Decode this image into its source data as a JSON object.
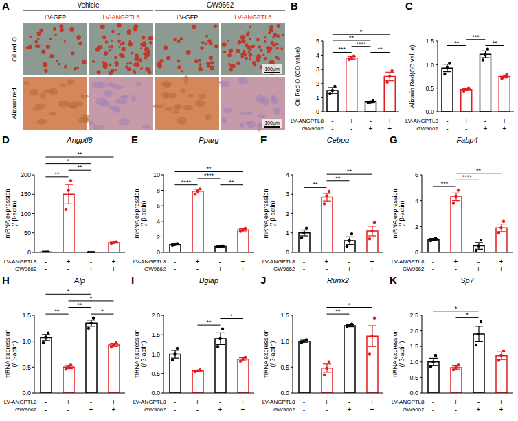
{
  "image_panel": {
    "panel": "A",
    "groups": [
      "Vehicle",
      "GW9662"
    ],
    "columns": [
      "LV-GFP",
      "LV-ANGPTL8",
      "LV-GFP",
      "LV-ANGPTL8"
    ],
    "rows": [
      "Oil red O",
      "Alizarin red"
    ],
    "scale_bar": "100μm"
  },
  "conditions": [
    {
      "label": "LV-ANGPTL8",
      "marks": [
        "-",
        "+",
        "-",
        "+"
      ]
    },
    {
      "label": "GW9662",
      "marks": [
        "-",
        "-",
        "+",
        "+"
      ]
    }
  ],
  "chart_data": [
    {
      "type": "bar",
      "panel": "B",
      "ylabel": [
        "Oil Red O (OD value)"
      ],
      "categories": [
        null,
        null,
        null,
        null
      ],
      "values": [
        1.5,
        3.8,
        0.7,
        2.5
      ],
      "errors": [
        0.2,
        0.1,
        0.05,
        0.3
      ],
      "points": [
        [
          1.3,
          1.5,
          1.8
        ],
        [
          3.7,
          3.8,
          3.95
        ],
        [
          0.65,
          0.7,
          0.78
        ],
        [
          2.1,
          2.5,
          2.9
        ]
      ],
      "colors": [
        "#000000",
        "#e41a1c",
        "#000000",
        "#e41a1c"
      ],
      "ylim": [
        0,
        5
      ],
      "yticks": [
        0,
        1,
        2,
        3,
        4,
        5
      ],
      "significance": [
        {
          "from": 0,
          "to": 1,
          "label": "***"
        },
        {
          "from": 2,
          "to": 3,
          "label": "**"
        },
        {
          "from": 1,
          "to": 2,
          "label": "****"
        },
        {
          "from": 0,
          "to": 2,
          "label": "**"
        },
        {
          "from": 0,
          "to": 3,
          "label": "*"
        }
      ]
    },
    {
      "type": "bar",
      "panel": "C",
      "ylabel": [
        "Alizarin Red(OD value)"
      ],
      "categories": [
        null,
        null,
        null,
        null
      ],
      "values": [
        0.93,
        0.47,
        1.22,
        0.75
      ],
      "errors": [
        0.08,
        0.02,
        0.07,
        0.03
      ],
      "points": [
        [
          0.8,
          0.95,
          1.03
        ],
        [
          0.44,
          0.47,
          0.5
        ],
        [
          1.1,
          1.22,
          1.33
        ],
        [
          0.71,
          0.75,
          0.79
        ]
      ],
      "colors": [
        "#000000",
        "#e41a1c",
        "#000000",
        "#e41a1c"
      ],
      "ylim": [
        0,
        1.5
      ],
      "yticks": [
        {
          "value": 0,
          "label": "0.0"
        },
        0.5,
        {
          "value": 1,
          "label": "1.0"
        },
        1.5
      ],
      "significance": [
        {
          "from": 0,
          "to": 1,
          "label": "**"
        },
        {
          "from": 2,
          "to": 3,
          "label": "**"
        },
        {
          "from": 1,
          "to": 2,
          "label": "***"
        }
      ]
    },
    {
      "type": "bar",
      "panel": "D",
      "title": "Angptl8",
      "ylabel": [
        "mRNA expression",
        "(/ β-actin)"
      ],
      "categories": [
        null,
        null,
        null,
        null
      ],
      "values": [
        1.0,
        150,
        0.15,
        25
      ],
      "errors": [
        0.12,
        25,
        0.03,
        1.5
      ],
      "points": [
        [
          0.85,
          1.0,
          1.15
        ],
        [
          110,
          160,
          185
        ],
        [
          0.1,
          0.15,
          0.2
        ],
        [
          23,
          25,
          27
        ]
      ],
      "colors": [
        "#000000",
        "#e41a1c",
        "#000000",
        "#e41a1c"
      ],
      "ylim": [
        0,
        200
      ],
      "yticks": [
        0,
        50,
        100,
        150,
        200
      ],
      "significance": [
        {
          "from": 0,
          "to": 1,
          "label": "**"
        },
        {
          "from": 1,
          "to": 2,
          "label": "**"
        },
        {
          "from": 0,
          "to": 2,
          "label": "*"
        },
        {
          "from": 0,
          "to": 3,
          "label": "**"
        }
      ]
    },
    {
      "type": "bar",
      "panel": "E",
      "title": "Pparg",
      "ylabel": [
        "mRNA expression",
        "(/ β-actin)"
      ],
      "categories": [
        null,
        null,
        null,
        null
      ],
      "values": [
        1.0,
        7.9,
        0.75,
        2.9
      ],
      "errors": [
        0.08,
        0.25,
        0.06,
        0.15
      ],
      "points": [
        [
          0.9,
          1.0,
          1.1
        ],
        [
          7.5,
          7.9,
          8.2
        ],
        [
          0.7,
          0.75,
          0.82
        ],
        [
          2.7,
          2.9,
          3.1
        ]
      ],
      "colors": [
        "#000000",
        "#e41a1c",
        "#000000",
        "#e41a1c"
      ],
      "ylim": [
        0,
        10
      ],
      "yticks": [
        0,
        2,
        4,
        6,
        8,
        10
      ],
      "significance": [
        {
          "from": 2,
          "to": 3,
          "label": "**"
        },
        {
          "from": 0,
          "to": 1,
          "label": "****"
        },
        {
          "from": 1,
          "to": 2,
          "label": "****"
        },
        {
          "from": 0,
          "to": 3,
          "label": "**"
        }
      ]
    },
    {
      "type": "bar",
      "panel": "F",
      "title": "Cebpα",
      "ylabel": [
        "mRNA expression",
        "(/ β-actin)"
      ],
      "categories": [
        null,
        null,
        null,
        null
      ],
      "values": [
        1.0,
        2.85,
        0.6,
        1.1
      ],
      "errors": [
        0.15,
        0.2,
        0.2,
        0.25
      ],
      "points": [
        [
          0.75,
          1.0,
          1.25
        ],
        [
          2.5,
          2.9,
          3.15
        ],
        [
          0.3,
          0.6,
          0.95
        ],
        [
          0.7,
          1.1,
          1.55
        ]
      ],
      "colors": [
        "#000000",
        "#e41a1c",
        "#000000",
        "#e41a1c"
      ],
      "ylim": [
        0,
        4
      ],
      "yticks": [
        0,
        1,
        2,
        3,
        4
      ],
      "significance": [
        {
          "from": 0,
          "to": 1,
          "label": "**"
        },
        {
          "from": 1,
          "to": 2,
          "label": "**"
        },
        {
          "from": 1,
          "to": 3,
          "label": "**"
        }
      ]
    },
    {
      "type": "bar",
      "panel": "G",
      "title": "Fabp4",
      "ylabel": [
        "mRNA expression",
        "(/ β-actin)"
      ],
      "categories": [
        null,
        null,
        null,
        null
      ],
      "values": [
        1.0,
        4.3,
        0.5,
        1.9
      ],
      "errors": [
        0.08,
        0.3,
        0.25,
        0.3
      ],
      "points": [
        [
          0.9,
          1.0,
          1.1
        ],
        [
          3.8,
          4.3,
          4.8
        ],
        [
          0.1,
          0.5,
          0.95
        ],
        [
          1.5,
          1.9,
          2.4
        ]
      ],
      "colors": [
        "#000000",
        "#e41a1c",
        "#000000",
        "#e41a1c"
      ],
      "ylim": [
        0,
        6
      ],
      "yticks": [
        0,
        2,
        4,
        6
      ],
      "significance": [
        {
          "from": 0,
          "to": 1,
          "label": "***"
        },
        {
          "from": 1,
          "to": 2,
          "label": "****"
        },
        {
          "from": 1,
          "to": 3,
          "label": "**"
        }
      ]
    },
    {
      "type": "bar",
      "panel": "H",
      "title": "Alp",
      "ylabel": [
        "mRNA expression",
        "(/ β-actin)"
      ],
      "categories": [
        null,
        null,
        null,
        null
      ],
      "values": [
        1.07,
        0.5,
        1.35,
        0.93
      ],
      "errors": [
        0.06,
        0.03,
        0.06,
        0.03
      ],
      "points": [
        [
          0.97,
          1.08,
          1.16
        ],
        [
          0.46,
          0.5,
          0.54
        ],
        [
          1.25,
          1.35,
          1.45
        ],
        [
          0.89,
          0.93,
          0.97
        ]
      ],
      "colors": [
        "#000000",
        "#e41a1c",
        "#000000",
        "#e41a1c"
      ],
      "ylim": [
        0,
        1.5
      ],
      "yticks": [
        {
          "value": 0,
          "label": "0.0"
        },
        0.5,
        {
          "value": 1,
          "label": "1.0"
        },
        1.5
      ],
      "significance": [
        {
          "from": 0,
          "to": 1,
          "label": "**"
        },
        {
          "from": 2,
          "to": 3,
          "label": "*"
        },
        {
          "from": 1,
          "to": 2,
          "label": "**"
        },
        {
          "from": 1,
          "to": 3,
          "label": "*"
        },
        {
          "from": 0,
          "to": 2,
          "label": "*"
        }
      ]
    },
    {
      "type": "bar",
      "panel": "I",
      "title": "Bglap",
      "ylabel": [
        "mRNA expression",
        "(/ β-actin)"
      ],
      "categories": [
        null,
        null,
        null,
        null
      ],
      "values": [
        1.0,
        0.57,
        1.4,
        0.87
      ],
      "errors": [
        0.1,
        0.02,
        0.15,
        0.04
      ],
      "points": [
        [
          0.85,
          1.0,
          1.15
        ],
        [
          0.55,
          0.57,
          0.6
        ],
        [
          1.2,
          1.4,
          1.65
        ],
        [
          0.82,
          0.87,
          0.92
        ]
      ],
      "colors": [
        "#000000",
        "#e41a1c",
        "#000000",
        "#e41a1c"
      ],
      "ylim": [
        0,
        2
      ],
      "yticks": [
        {
          "value": 0,
          "label": "0.0"
        },
        0.5,
        {
          "value": 1,
          "label": "1.0"
        },
        1.5,
        {
          "value": 2,
          "label": "2.0"
        }
      ],
      "significance": [
        {
          "from": 1,
          "to": 2,
          "label": "**"
        },
        {
          "from": 2,
          "to": 3,
          "label": "*"
        }
      ]
    },
    {
      "type": "bar",
      "panel": "J",
      "title": "Runx2",
      "ylabel": [
        "mRNA expression",
        "(/ β-actin)"
      ],
      "categories": [
        null,
        null,
        null,
        null
      ],
      "values": [
        1.0,
        0.48,
        1.3,
        1.1
      ],
      "errors": [
        0.02,
        0.08,
        0.02,
        0.2
      ],
      "points": [
        [
          0.97,
          1.0,
          1.03
        ],
        [
          0.35,
          0.48,
          0.6
        ],
        [
          1.28,
          1.3,
          1.33
        ],
        [
          0.75,
          1.1,
          1.45
        ]
      ],
      "colors": [
        "#000000",
        "#e41a1c",
        "#000000",
        "#e41a1c"
      ],
      "ylim": [
        0,
        1.5
      ],
      "yticks": [
        {
          "value": 0,
          "label": "0.0"
        },
        0.5,
        {
          "value": 1,
          "label": "1.0"
        },
        1.5
      ],
      "significance": [
        {
          "from": 1,
          "to": 2,
          "label": "**"
        },
        {
          "from": 1,
          "to": 3,
          "label": "*"
        }
      ]
    },
    {
      "type": "bar",
      "panel": "K",
      "title": "Sp7",
      "ylabel": [
        "mRNA expression",
        "(/ β-actin)"
      ],
      "categories": [
        null,
        null,
        null,
        null
      ],
      "values": [
        1.0,
        0.82,
        1.9,
        1.2
      ],
      "errors": [
        0.12,
        0.05,
        0.25,
        0.12
      ],
      "points": [
        [
          0.85,
          1.0,
          1.2
        ],
        [
          0.75,
          0.82,
          0.9
        ],
        [
          1.55,
          1.9,
          2.3
        ],
        [
          1.05,
          1.2,
          1.35
        ]
      ],
      "colors": [
        "#000000",
        "#e41a1c",
        "#000000",
        "#e41a1c"
      ],
      "ylim": [
        0,
        2.5
      ],
      "yticks": [
        {
          "value": 0,
          "label": "0.0"
        },
        0.5,
        {
          "value": 1,
          "label": "1.0"
        },
        1.5,
        {
          "value": 2,
          "label": "2.0"
        },
        2.5
      ],
      "significance": [
        {
          "from": 1,
          "to": 2,
          "label": "*"
        },
        {
          "from": 0,
          "to": 2,
          "label": "*"
        }
      ]
    }
  ]
}
